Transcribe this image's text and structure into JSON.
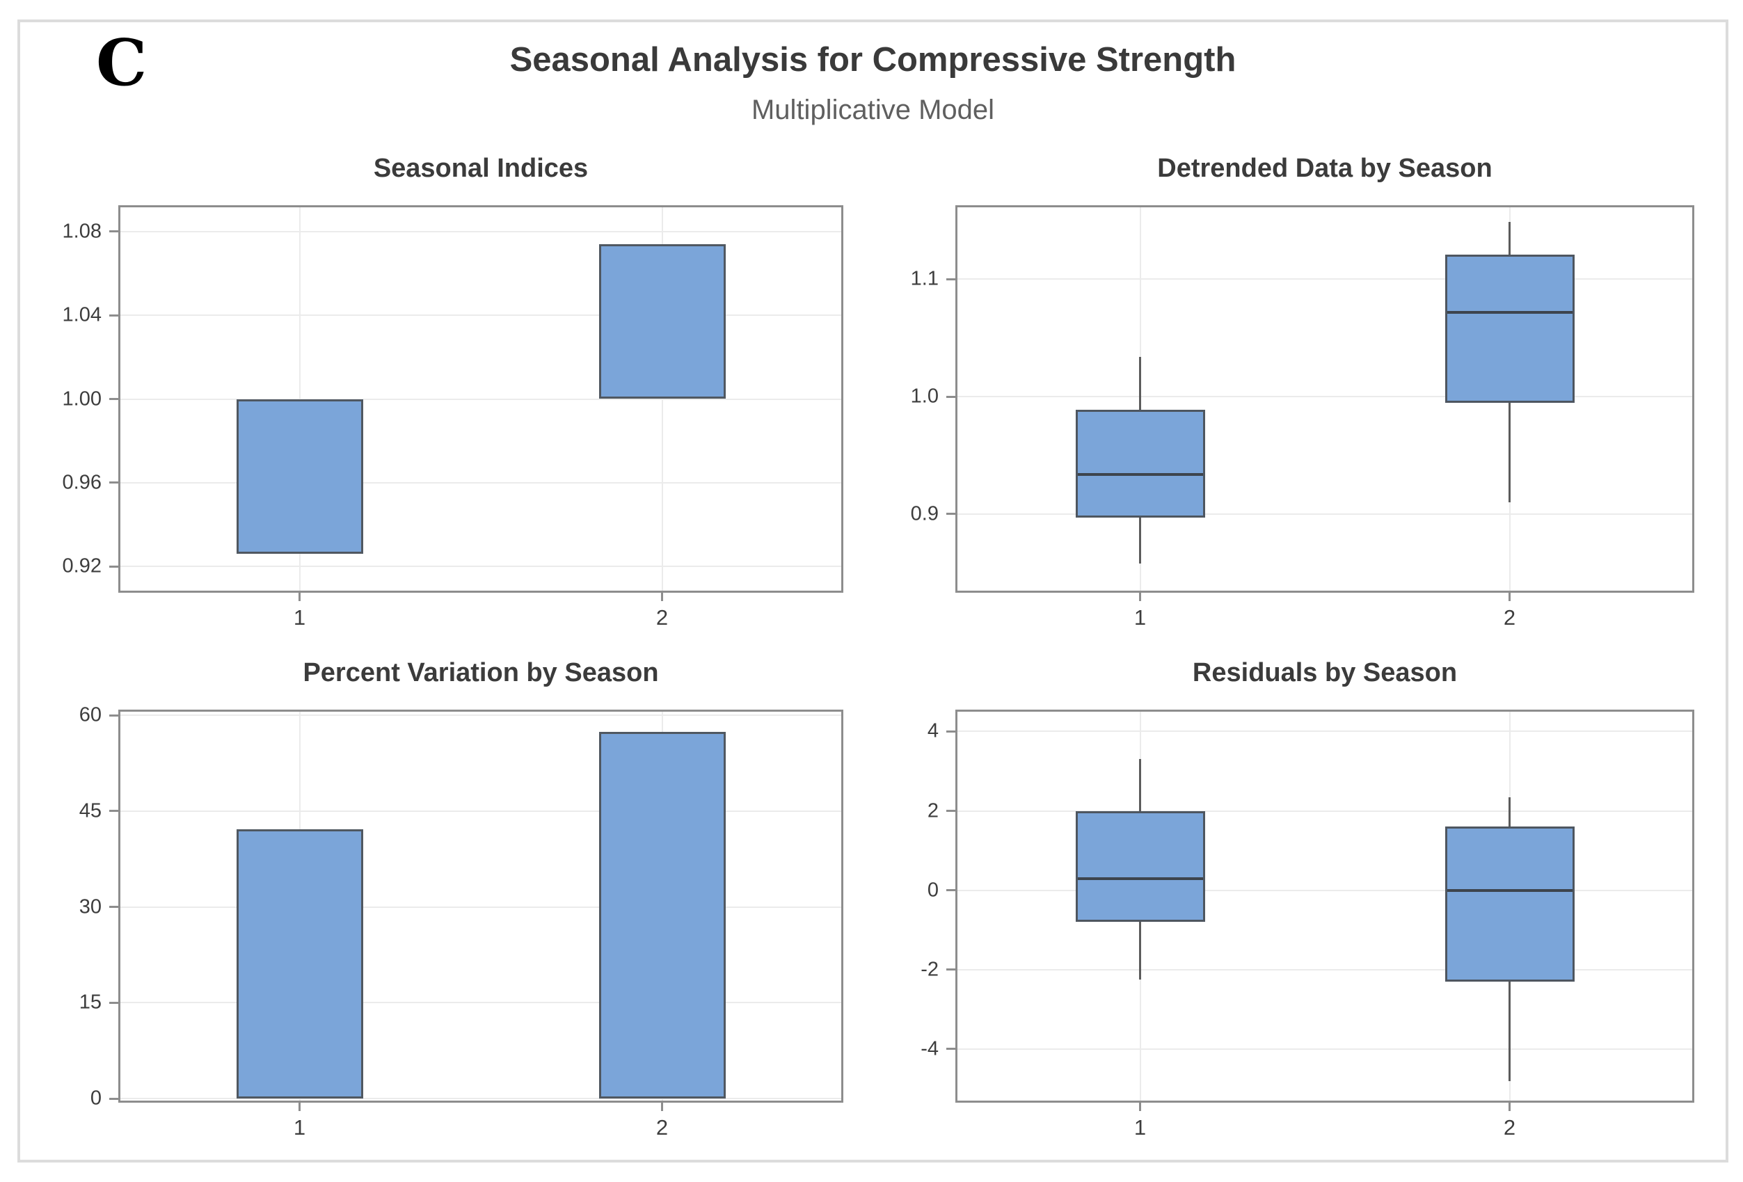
{
  "figure_label": "C",
  "header": {
    "title": "Seasonal Analysis for Compressive Strength",
    "subtitle": "Multiplicative Model"
  },
  "colors": {
    "fill": "#7ba5d9",
    "shape_border": "#4e5660",
    "median": "#3d444d",
    "whisker": "#5c5c5c",
    "gridline": "#ebebeb",
    "axis_border": "#8d8d8d",
    "title_text": "#3a3a3a",
    "subtitle_text": "#5f5f5f",
    "tick_text": "#3d3d3d",
    "outer_frame": "#dcdcdc"
  },
  "chart_data": [
    {
      "id": "seasonal-indices",
      "type": "bar",
      "title": "Seasonal Indices",
      "categories": [
        "1",
        "2"
      ],
      "values": [
        0.926,
        1.074
      ],
      "baseline": 1.0,
      "yticks": [
        1.08,
        1.04,
        1.0,
        0.96,
        0.92
      ],
      "ytick_labels": [
        "1.08",
        "1.04",
        "1.00",
        "0.96",
        "0.92"
      ],
      "ylim": [
        0.9075,
        1.0925
      ],
      "grid": true,
      "legend": "none"
    },
    {
      "id": "detrended-data-by-season",
      "type": "boxplot",
      "title": "Detrended Data by Season",
      "categories": [
        "1",
        "2"
      ],
      "boxes": [
        {
          "whisker_low": 0.858,
          "q1": 0.897,
          "median": 0.934,
          "q3": 0.989,
          "whisker_high": 1.034
        },
        {
          "whisker_low": 0.91,
          "q1": 0.995,
          "median": 1.072,
          "q3": 1.121,
          "whisker_high": 1.149
        }
      ],
      "yticks": [
        1.1,
        1.0,
        0.9
      ],
      "ytick_labels": [
        "1.1",
        "1.0",
        "0.9"
      ],
      "ylim": [
        0.833,
        1.163
      ],
      "grid": true,
      "legend": "none"
    },
    {
      "id": "percent-variation-by-season",
      "type": "bar",
      "title": "Percent Variation by Season",
      "categories": [
        "1",
        "2"
      ],
      "values": [
        42.2,
        57.4
      ],
      "baseline": 0,
      "yticks": [
        60,
        45,
        30,
        15,
        0
      ],
      "ytick_labels": [
        "60",
        "45",
        "30",
        "15",
        "0"
      ],
      "ylim": [
        -0.65,
        60.9
      ],
      "grid": true,
      "legend": "none"
    },
    {
      "id": "residuals-by-season",
      "type": "boxplot",
      "title": "Residuals by Season",
      "categories": [
        "1",
        "2"
      ],
      "boxes": [
        {
          "whisker_low": -2.25,
          "q1": -0.8,
          "median": 0.3,
          "q3": 2.0,
          "whisker_high": 3.3
        },
        {
          "whisker_low": -4.8,
          "q1": -2.3,
          "median": 0.0,
          "q3": 1.6,
          "whisker_high": 2.35
        }
      ],
      "yticks": [
        4,
        2,
        0,
        -2,
        -4
      ],
      "ytick_labels": [
        "4",
        "2",
        "0",
        "-2",
        "-4"
      ],
      "ylim": [
        -5.35,
        4.55
      ],
      "grid": true,
      "legend": "none"
    }
  ]
}
